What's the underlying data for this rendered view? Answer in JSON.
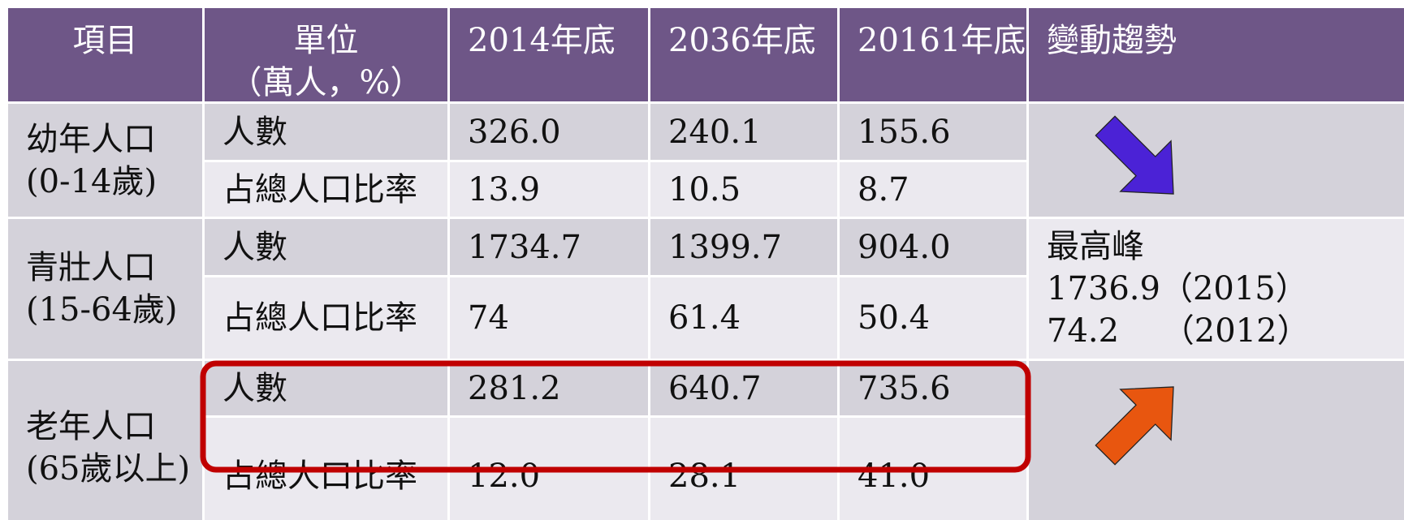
{
  "table": {
    "header": [
      [
        "項目"
      ],
      [
        "單位",
        "（萬人，%）"
      ],
      [
        "2014年底"
      ],
      [
        "2036年底"
      ],
      [
        "20161年底"
      ],
      [
        "變動趨勢"
      ]
    ],
    "groups": [
      {
        "label": [
          "幼年人口",
          "(0-14歲)"
        ],
        "rows": [
          [
            "人數",
            "326.0",
            "240.1",
            "155.6"
          ],
          [
            "占總人口比率",
            "13.9",
            "10.5",
            "8.7"
          ]
        ]
      },
      {
        "label": [
          "青壯人口",
          "(15-64歲)"
        ],
        "rows": [
          [
            "人數",
            "1734.7",
            "1399.7",
            "904.0"
          ],
          [
            "占總人口比率",
            "74",
            "61.4",
            "50.4"
          ]
        ],
        "trend": [
          "最高峰",
          "1736.9（2015）",
          "74.2　 （2012）"
        ]
      },
      {
        "label": [
          "老年人口",
          "(65歲以上)"
        ],
        "rows": [
          [
            "人數",
            "281.2",
            "640.7",
            "735.6"
          ],
          [
            "占總人口比率",
            "12.0",
            "28.1",
            "41.0"
          ]
        ]
      }
    ]
  }
}
